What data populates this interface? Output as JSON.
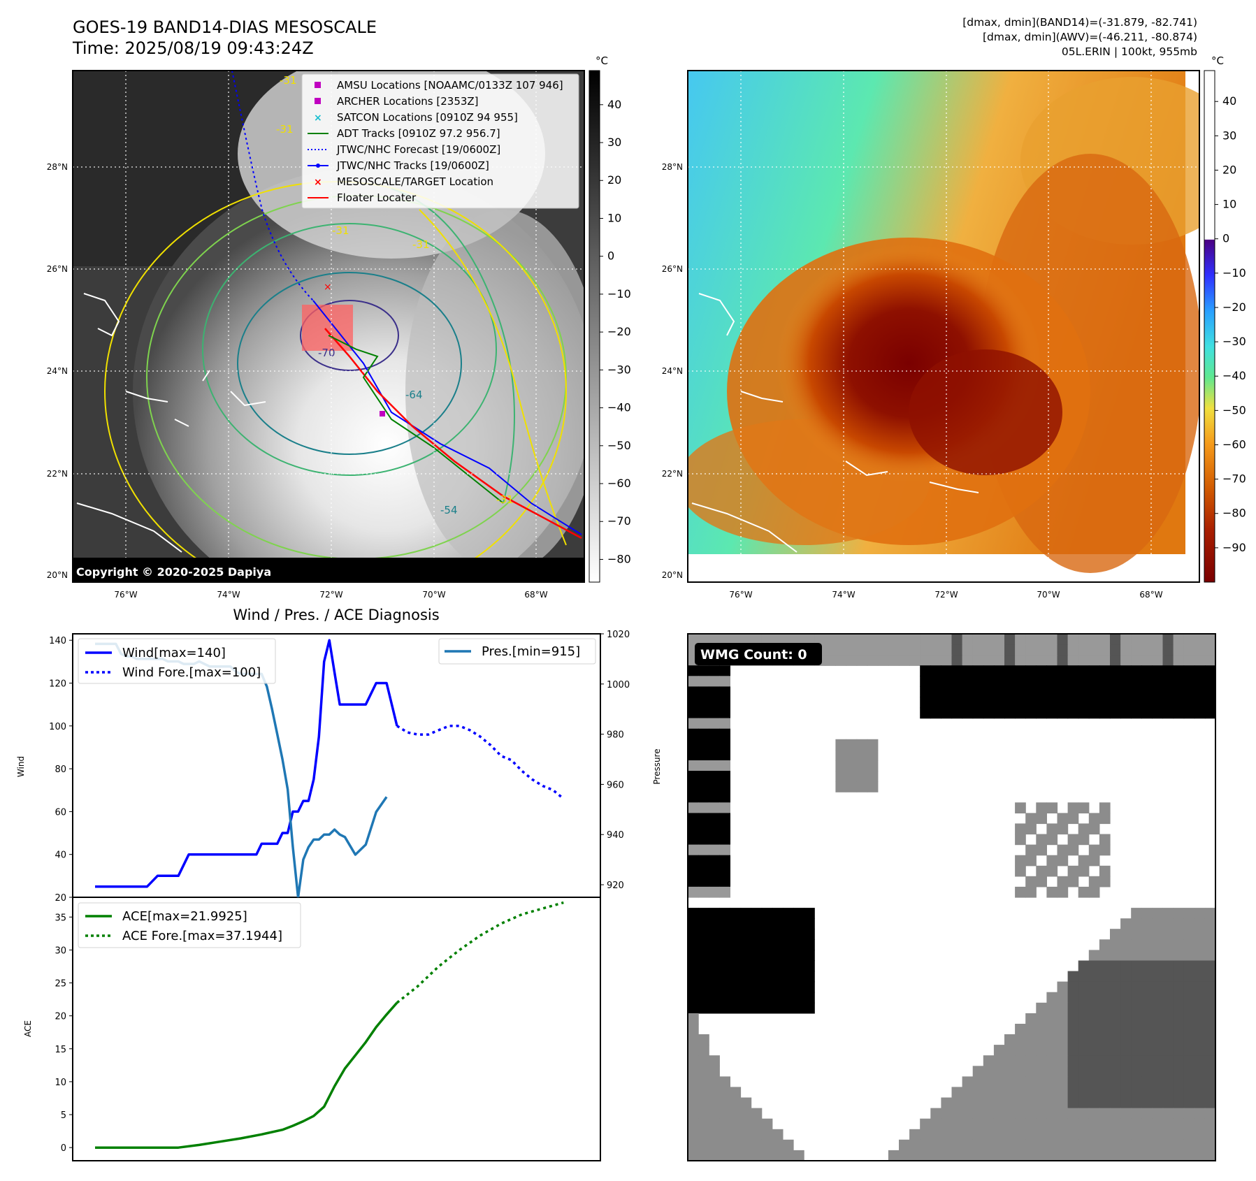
{
  "header": {
    "title": "GOES-19 BAND14-DIAS MESOSCALE",
    "time": "Time: 2025/08/19 09:43:24Z",
    "stats_band14": "[dmax, dmin](BAND14)=(-31.879, -82.741)",
    "stats_awv": "[dmax, dmin](AWV)=(-46.211, -80.874)",
    "storm": "05L.ERIN | 100kt, 955mb"
  },
  "map_ir": {
    "copyright": "Copyright © 2020-2025 Dapiya",
    "lat_ticks": [
      "20°N",
      "22°N",
      "24°N",
      "26°N",
      "28°N"
    ],
    "lon_ticks": [
      "76°W",
      "74°W",
      "72°W",
      "70°W",
      "68°W"
    ],
    "colorbar_unit": "°C",
    "colorbar_ticks": [
      "40",
      "30",
      "20",
      "10",
      "0",
      "−10",
      "−20",
      "−30",
      "−40",
      "−50",
      "−60",
      "−70",
      "−80"
    ],
    "contour_labels": [
      "-31",
      "-31",
      "-31",
      "-31",
      "-54",
      "-64",
      "-70",
      "-31"
    ],
    "legend": [
      {
        "label": "AMSU Locations [NOAAMC/0133Z 107 946]",
        "color": "#c000c0",
        "marker": "square"
      },
      {
        "label": "ARCHER Locations [2353Z]",
        "color": "#c000c0",
        "marker": "square"
      },
      {
        "label": "SATCON Locations [0910Z 94 955]",
        "color": "#17becf",
        "marker": "x"
      },
      {
        "label": "ADT Tracks [0910Z 97.2 956.7]",
        "color": "#008000",
        "marker": "line"
      },
      {
        "label": "JTWC/NHC Forecast [19/0600Z]",
        "color": "#0000ff",
        "marker": "dotted"
      },
      {
        "label": "JTWC/NHC Tracks [19/0600Z]",
        "color": "#0000ff",
        "marker": "line-dot"
      },
      {
        "label": "MESOSCALE/TARGET Location",
        "color": "#ff0000",
        "marker": "x"
      },
      {
        "label": "Floater Locater",
        "color": "#ff0000",
        "marker": "line"
      }
    ]
  },
  "map_awv": {
    "lat_ticks": [
      "20°N",
      "22°N",
      "24°N",
      "26°N",
      "28°N"
    ],
    "lon_ticks": [
      "76°W",
      "74°W",
      "72°W",
      "70°W",
      "68°W"
    ],
    "colorbar_unit": "°C",
    "colorbar_ticks": [
      "40",
      "30",
      "20",
      "10",
      "0",
      "−10",
      "−20",
      "−30",
      "−40",
      "−50",
      "−60",
      "−70",
      "−80",
      "−90"
    ]
  },
  "chart_data": [
    {
      "type": "line",
      "title": "Wind / Pres. / ACE Diagnosis",
      "ylabel": "Wind",
      "y2label": "Pressure",
      "ylim": [
        20,
        143
      ],
      "y2lim": [
        915,
        1020
      ],
      "yticks": [
        "20",
        "40",
        "60",
        "80",
        "100",
        "120",
        "140"
      ],
      "y2ticks": [
        "920",
        "940",
        "960",
        "980",
        "1000",
        "1020"
      ],
      "legend_left": [
        "Wind[max=140]",
        "Wind Fore.[max=100]"
      ],
      "legend_right": [
        "Pres.[min=915]"
      ],
      "series": [
        {
          "name": "Wind[max=140]",
          "color": "#0000ff",
          "style": "solid",
          "x": [
            0,
            2,
            4,
            6,
            8,
            10,
            12,
            14,
            16,
            18,
            20,
            22,
            24,
            26,
            28,
            30,
            31,
            32,
            33,
            34,
            35,
            36,
            37,
            38,
            39,
            40,
            41,
            42,
            43,
            44,
            45,
            46,
            47,
            48,
            50,
            52,
            54,
            56,
            58,
            60,
            62,
            63,
            64
          ],
          "values": [
            25,
            25,
            25,
            25,
            25,
            25,
            30,
            30,
            30,
            40,
            40,
            40,
            40,
            40,
            40,
            40,
            40,
            45,
            45,
            45,
            45,
            50,
            50,
            60,
            60,
            65,
            65,
            75,
            95,
            130,
            140,
            125,
            110,
            110,
            110,
            110,
            120,
            120,
            100,
            null,
            null,
            null,
            null
          ]
        },
        {
          "name": "Wind Fore.[max=100]",
          "color": "#0000ff",
          "style": "dotted",
          "x": [
            58,
            60,
            62,
            64,
            66,
            68,
            70,
            72,
            74,
            76,
            78,
            80,
            82,
            84,
            86,
            88,
            90
          ],
          "values": [
            100,
            97,
            96,
            96,
            98,
            100,
            100,
            98,
            95,
            91,
            86,
            84,
            79,
            75,
            72,
            70,
            66
          ]
        },
        {
          "name": "Pres.[min=915]",
          "color": "#1f77b4",
          "style": "solid",
          "axis": "right",
          "x": [
            0,
            2,
            3,
            4,
            5,
            6,
            7,
            8,
            9,
            10,
            11,
            12,
            13,
            14,
            15,
            16,
            17,
            18,
            19,
            20,
            21,
            22,
            23,
            24,
            25,
            26,
            27,
            28,
            29,
            30,
            31,
            32,
            33,
            34,
            35,
            36,
            37,
            38,
            39,
            40,
            41,
            42,
            43,
            44,
            45,
            46,
            47,
            48,
            50,
            52,
            54,
            56,
            58
          ],
          "values": [
            1016,
            1016,
            1016,
            1016,
            1012,
            1011,
            1011,
            1010,
            1010,
            1010,
            1010,
            1010,
            1010,
            1009,
            1009,
            1009,
            1008,
            1008,
            1008,
            1009,
            1008,
            1007,
            1007,
            1007,
            1007,
            1007,
            1005,
            1004,
            1004,
            1004,
            1004,
            1004,
            999,
            990,
            980,
            970,
            958,
            935,
            915,
            930,
            935,
            938,
            938,
            940,
            940,
            942,
            940,
            939,
            932,
            936,
            949,
            955,
            null
          ]
        }
      ]
    },
    {
      "type": "line",
      "ylabel": "ACE",
      "ylim": [
        -2,
        38
      ],
      "yticks": [
        "0",
        "5",
        "10",
        "15",
        "20",
        "25",
        "30",
        "35"
      ],
      "legend": [
        "ACE[max=21.9925]",
        "ACE Fore.[max=37.1944]"
      ],
      "series": [
        {
          "name": "ACE[max=21.9925]",
          "color": "#008000",
          "style": "solid",
          "x": [
            0,
            4,
            8,
            12,
            16,
            20,
            24,
            28,
            32,
            36,
            38,
            40,
            42,
            44,
            46,
            48,
            50,
            52,
            54,
            56,
            58
          ],
          "values": [
            0,
            0,
            0,
            0,
            0,
            0.4,
            0.9,
            1.4,
            2.0,
            2.7,
            3.3,
            4.0,
            4.8,
            6.2,
            9.3,
            12.0,
            14.0,
            16.0,
            18.3,
            20.2,
            21.99
          ]
        },
        {
          "name": "ACE Fore.[max=37.1944]",
          "color": "#008000",
          "style": "dotted",
          "x": [
            58,
            62,
            66,
            70,
            74,
            78,
            82,
            86,
            90
          ],
          "values": [
            21.99,
            24.5,
            27.5,
            30.0,
            32.2,
            34.0,
            35.4,
            36.3,
            37.19
          ]
        }
      ]
    }
  ],
  "wmg": {
    "label": "WMG Count: 0"
  }
}
